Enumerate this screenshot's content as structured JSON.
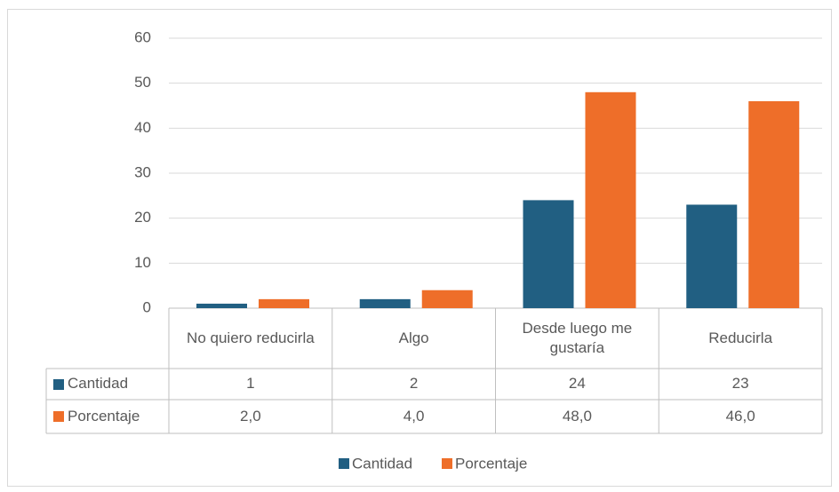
{
  "chart_data": {
    "type": "bar",
    "categories": [
      "No quiero reducirla",
      "Algo",
      "Desde luego me gustaría",
      "Reducirla"
    ],
    "series": [
      {
        "name": "Cantidad",
        "color": "#215f82",
        "values": [
          1,
          2,
          24,
          23
        ]
      },
      {
        "name": "Porcentaje",
        "color": "#ee6e29",
        "values": [
          2,
          4,
          48,
          46
        ],
        "value_labels": [
          "2,0",
          "4,0",
          "48,0",
          "46,0"
        ]
      }
    ],
    "ylim": [
      0,
      60
    ],
    "yticks": [
      0,
      10,
      20,
      30,
      40,
      50,
      60
    ],
    "grid": true,
    "legend": "bottom"
  }
}
